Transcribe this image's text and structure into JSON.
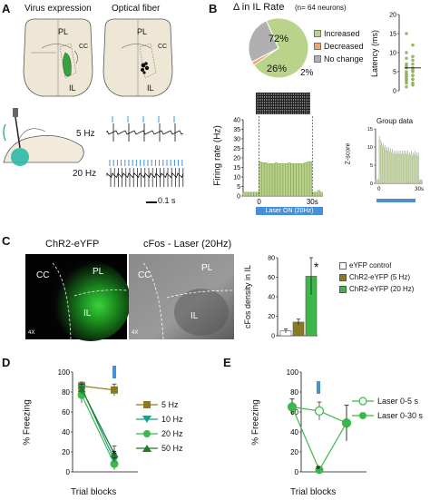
{
  "panels": {
    "a": {
      "letter": "A",
      "titles": [
        "Virus expression",
        "Optical fiber"
      ],
      "region_labels": {
        "pl": "PL",
        "cc": "CC",
        "il": "IL"
      },
      "trace_labels": [
        "5 Hz",
        "20 Hz"
      ],
      "scale_bar": "0.1 s"
    },
    "b": {
      "letter": "B",
      "pie_title": "Δ in IL Rate",
      "pie_n": "(n= 64 neurons)",
      "pie_legend": [
        "Increased",
        "Decreased",
        "No change"
      ],
      "pie_labels": [
        "72%",
        "2%",
        "26%"
      ],
      "latency_ylabel": "Latency (ms)",
      "latency_ticks": [
        "0",
        "5",
        "10",
        "15",
        "20"
      ],
      "rate_ylabel": "Firing rate (Hz)",
      "rate_ticks": [
        "0",
        "5",
        "10",
        "15",
        "20",
        "25",
        "30",
        "35",
        "40"
      ],
      "rate_xticks": [
        "0",
        "30s"
      ],
      "laser_label": "Laser ON (20Hz)",
      "group_title": "Group data",
      "group_ylabel": "Z-score",
      "group_ticks": [
        "0",
        "5",
        "10",
        "15"
      ],
      "group_xticks": [
        "0",
        "30s"
      ]
    },
    "c": {
      "letter": "C",
      "img_titles": [
        "ChR2-eYFP",
        "cFos - Laser (20Hz)"
      ],
      "img_labels": {
        "cc": "CC",
        "pl": "PL",
        "il": "IL",
        "mag": "4X"
      },
      "ylabel": "cFos density in IL",
      "ticks": [
        "0",
        "20",
        "40",
        "60",
        "80"
      ],
      "legend": [
        "eYFP control",
        "ChR2-eYFP (5 Hz)",
        "ChR2-eYFP (20 Hz)"
      ],
      "star": "*"
    },
    "d": {
      "letter": "D",
      "ylabel": "% Freezing",
      "xlabel": "Trial blocks",
      "ticks": [
        "0",
        "20",
        "40",
        "60",
        "80",
        "100"
      ],
      "legend": [
        "5 Hz",
        "10 Hz",
        "20 Hz",
        "50 Hz"
      ],
      "star": "*"
    },
    "e": {
      "letter": "E",
      "ylabel": "% Freezing",
      "xlabel": "Trial blocks",
      "ticks": [
        "0",
        "20",
        "40",
        "60",
        "80",
        "100"
      ],
      "legend": [
        "Laser 0-5 s",
        "Laser 0-30 s"
      ],
      "star": "*"
    }
  },
  "colors": {
    "green_light": "#b9d48a",
    "green_bright": "#3cb84a",
    "olive": "#8a7a22",
    "orange": "#f2a46c",
    "gray": "#b0b0b0",
    "blue": "#4a8fd4",
    "teal": "#1a9e8a"
  },
  "chart_data": [
    {
      "type": "pie",
      "title": "Δ in IL Rate",
      "categories": [
        "Increased",
        "Decreased",
        "No change"
      ],
      "values": [
        72,
        2,
        26
      ]
    },
    {
      "type": "scatter",
      "ylabel": "Latency (ms)",
      "ylim": [
        0,
        20
      ],
      "values": [
        1,
        1.5,
        2,
        2,
        2.5,
        3,
        3,
        3,
        3.5,
        4,
        4,
        4,
        4.5,
        5,
        5,
        5.5,
        6,
        6,
        6.5,
        7,
        7,
        8,
        8.5,
        9,
        10,
        12,
        15
      ]
    },
    {
      "type": "bar",
      "ylabel": "Firing rate (Hz)",
      "ylim": [
        0,
        40
      ],
      "xticks": [
        "0",
        "30s"
      ],
      "values": [
        2,
        2,
        2,
        2,
        2,
        2,
        18,
        17.5,
        17.5,
        17,
        17,
        17,
        17.5,
        17,
        17,
        17,
        17,
        17.5,
        17,
        17,
        17,
        17,
        17,
        17.5,
        18,
        18,
        2,
        2,
        3,
        2
      ]
    },
    {
      "type": "bar",
      "title": "Group data",
      "ylabel": "Z-score",
      "ylim": [
        0,
        15
      ],
      "values": [
        1,
        1,
        12,
        10.5,
        10,
        9.5,
        9,
        9,
        8.5,
        8.5,
        8,
        8,
        8,
        8,
        8,
        8,
        8,
        8,
        8,
        7.5,
        8,
        7.5,
        8,
        7.5,
        7.5,
        1,
        1
      ]
    },
    {
      "type": "bar",
      "ylabel": "cFos density in IL",
      "ylim": [
        0,
        80
      ],
      "categories": [
        "eYFP control",
        "ChR2-eYFP (5 Hz)",
        "ChR2-eYFP (20 Hz)"
      ],
      "values": [
        5,
        14,
        61
      ],
      "errors": [
        2,
        3,
        19
      ]
    },
    {
      "type": "line",
      "ylabel": "% Freezing",
      "xlabel": "Trial blocks",
      "ylim": [
        0,
        100
      ],
      "series": [
        {
          "name": "5 Hz",
          "values": [
            86,
            82
          ],
          "errors": [
            4,
            6
          ]
        },
        {
          "name": "10 Hz",
          "values": [
            84,
            12
          ],
          "errors": [
            4,
            7
          ]
        },
        {
          "name": "20 Hz",
          "values": [
            77,
            8
          ],
          "errors": [
            8,
            6
          ]
        },
        {
          "name": "50 Hz",
          "values": [
            83,
            18
          ],
          "errors": [
            5,
            8
          ]
        }
      ]
    },
    {
      "type": "line",
      "ylabel": "% Freezing",
      "xlabel": "Trial blocks",
      "ylim": [
        0,
        100
      ],
      "series": [
        {
          "name": "Laser 0-5 s",
          "values": [
            65,
            61,
            49
          ],
          "errors": [
            8,
            9,
            18
          ]
        },
        {
          "name": "Laser 0-30 s",
          "values": [
            65,
            2,
            49
          ],
          "errors": [
            8,
            2,
            18
          ]
        }
      ]
    }
  ]
}
